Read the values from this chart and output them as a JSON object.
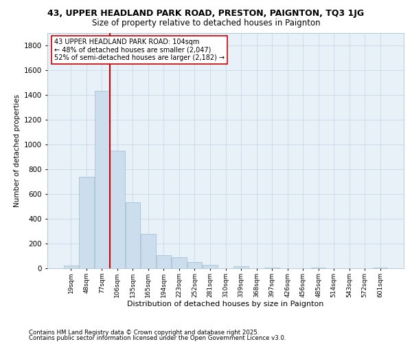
{
  "title1": "43, UPPER HEADLAND PARK ROAD, PRESTON, PAIGNTON, TQ3 1JG",
  "title2": "Size of property relative to detached houses in Paignton",
  "xlabel": "Distribution of detached houses by size in Paignton",
  "ylabel": "Number of detached properties",
  "bar_color": "#ccdded",
  "bar_edge_color": "#9bbcce",
  "vline_color": "#cc0000",
  "vline_bin_index": 3,
  "annotation_line1": "43 UPPER HEADLAND PARK ROAD: 104sqm",
  "annotation_line2": "← 48% of detached houses are smaller (2,047)",
  "annotation_line3": "52% of semi-detached houses are larger (2,182) →",
  "categories": [
    "19sqm",
    "48sqm",
    "77sqm",
    "106sqm",
    "135sqm",
    "165sqm",
    "194sqm",
    "223sqm",
    "252sqm",
    "281sqm",
    "310sqm",
    "339sqm",
    "368sqm",
    "397sqm",
    "426sqm",
    "456sqm",
    "485sqm",
    "514sqm",
    "543sqm",
    "572sqm",
    "601sqm"
  ],
  "values": [
    20,
    740,
    1430,
    950,
    530,
    275,
    105,
    90,
    50,
    25,
    0,
    15,
    0,
    5,
    0,
    0,
    5,
    0,
    0,
    0,
    5
  ],
  "ylim": [
    0,
    1900
  ],
  "yticks": [
    0,
    200,
    400,
    600,
    800,
    1000,
    1200,
    1400,
    1600,
    1800
  ],
  "grid_color": "#c8d8e8",
  "background_color": "#e8f0f8",
  "footnote1": "Contains HM Land Registry data © Crown copyright and database right 2025.",
  "footnote2": "Contains public sector information licensed under the Open Government Licence v3.0."
}
